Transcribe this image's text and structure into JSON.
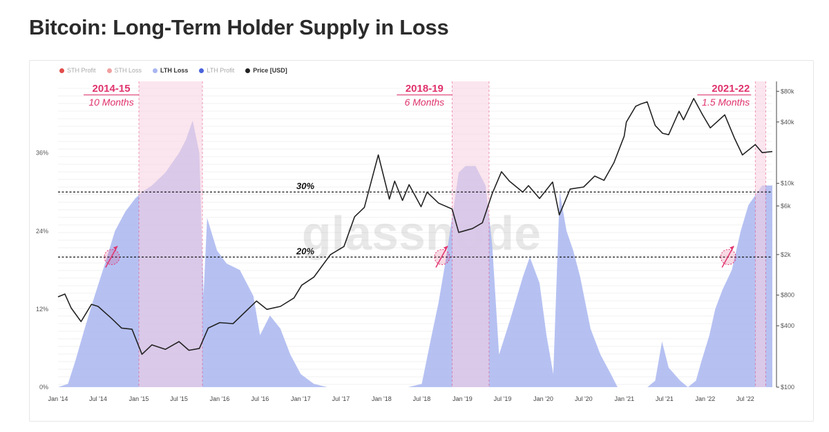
{
  "title": "Bitcoin: Long-Term Holder Supply in Loss",
  "legend": [
    {
      "label": "STH Profit",
      "color": "#e24b4b",
      "active": false
    },
    {
      "label": "STH Loss",
      "color": "#f0a0a0",
      "active": false
    },
    {
      "label": "LTH Loss",
      "color": "#a9b6f0",
      "active": true
    },
    {
      "label": "LTH Profit",
      "color": "#4a63dc",
      "active": false
    },
    {
      "label": "Price [USD]",
      "color": "#222222",
      "active": true
    }
  ],
  "watermark": "glassnode",
  "colors": {
    "lth_loss_fill": "#a9b6f0",
    "bear_band": "#f8cfe0",
    "price_line": "#222222",
    "annotation": "#e0336e"
  },
  "chart_data": {
    "type": "area",
    "x_range": [
      "2014-01-01",
      "2022-10-31"
    ],
    "x_ticks": [
      "Jan '14",
      "Jul '14",
      "Jan '15",
      "Jul '15",
      "Jan '16",
      "Jul '16",
      "Jan '17",
      "Jul '17",
      "Jan '18",
      "Jul '18",
      "Jan '19",
      "Jul '19",
      "Jan '20",
      "Jul '20",
      "Jan '21",
      "Jul '21",
      "Jan '22",
      "Jul '22"
    ],
    "y_left": {
      "ticks": [
        "0%",
        "12%",
        "24%",
        "36%"
      ],
      "values": [
        0,
        12,
        24,
        36
      ],
      "ylim": [
        0,
        47
      ]
    },
    "y_right": {
      "scale": "log",
      "ticks": [
        "$100",
        "$400",
        "$800",
        "$2k",
        "$6k",
        "$10k",
        "$40k",
        "$80k"
      ],
      "values": [
        100,
        400,
        800,
        2000,
        6000,
        10000,
        40000,
        80000
      ],
      "ylim": [
        100,
        100000
      ]
    },
    "reference_lines": [
      {
        "value": 30,
        "label": "30%"
      },
      {
        "value": 20,
        "label": "20%"
      }
    ],
    "bear_periods": [
      {
        "start": "2015-01-01",
        "end": "2015-10-15",
        "title": "2014-15",
        "subtitle": "10 Months"
      },
      {
        "start": "2018-11-15",
        "end": "2019-05-01",
        "title": "2018-19",
        "subtitle": "6 Months"
      },
      {
        "start": "2022-08-15",
        "end": "2022-10-01",
        "title": "2021-22",
        "subtitle": "1.5 Months"
      }
    ],
    "series": [
      {
        "name": "LTH Loss",
        "unit": "%",
        "points": [
          [
            "2014-01-01",
            0
          ],
          [
            "2014-02-15",
            0.5
          ],
          [
            "2014-03-20",
            4
          ],
          [
            "2014-05-01",
            9
          ],
          [
            "2014-06-15",
            14
          ],
          [
            "2014-08-01",
            19
          ],
          [
            "2014-09-15",
            24
          ],
          [
            "2014-11-01",
            27
          ],
          [
            "2014-12-15",
            29
          ],
          [
            "2015-01-15",
            30
          ],
          [
            "2015-03-01",
            31
          ],
          [
            "2015-05-01",
            33
          ],
          [
            "2015-07-01",
            36
          ],
          [
            "2015-08-01",
            38
          ],
          [
            "2015-09-01",
            41
          ],
          [
            "2015-10-01",
            36
          ],
          [
            "2015-10-20",
            14
          ],
          [
            "2015-11-05",
            26
          ],
          [
            "2015-12-20",
            21
          ],
          [
            "2016-02-01",
            19
          ],
          [
            "2016-04-01",
            18
          ],
          [
            "2016-06-01",
            14
          ],
          [
            "2016-07-01",
            8
          ],
          [
            "2016-08-15",
            11
          ],
          [
            "2016-10-01",
            9
          ],
          [
            "2016-11-15",
            5
          ],
          [
            "2017-01-01",
            2
          ],
          [
            "2017-03-01",
            0.5
          ],
          [
            "2017-05-01",
            0
          ],
          [
            "2017-12-15",
            0
          ],
          [
            "2018-02-15",
            0
          ],
          [
            "2018-05-01",
            0
          ],
          [
            "2018-07-01",
            0.5
          ],
          [
            "2018-08-15",
            8
          ],
          [
            "2018-09-15",
            13
          ],
          [
            "2018-10-15",
            19
          ],
          [
            "2018-11-15",
            26
          ],
          [
            "2018-12-15",
            33
          ],
          [
            "2019-01-15",
            34
          ],
          [
            "2019-03-01",
            34
          ],
          [
            "2019-04-15",
            31
          ],
          [
            "2019-05-15",
            22
          ],
          [
            "2019-06-15",
            5
          ],
          [
            "2019-08-01",
            10
          ],
          [
            "2019-10-01",
            17
          ],
          [
            "2019-11-01",
            20
          ],
          [
            "2019-12-15",
            16
          ],
          [
            "2020-01-15",
            8
          ],
          [
            "2020-02-15",
            2
          ],
          [
            "2020-03-15",
            30
          ],
          [
            "2020-04-15",
            24
          ],
          [
            "2020-05-15",
            21
          ],
          [
            "2020-06-15",
            17
          ],
          [
            "2020-08-01",
            9
          ],
          [
            "2020-09-15",
            5
          ],
          [
            "2020-11-01",
            2
          ],
          [
            "2020-12-01",
            0
          ],
          [
            "2021-04-15",
            0
          ],
          [
            "2021-05-20",
            1
          ],
          [
            "2021-06-20",
            7
          ],
          [
            "2021-07-20",
            3
          ],
          [
            "2021-09-10",
            1
          ],
          [
            "2021-10-15",
            0
          ],
          [
            "2021-11-20",
            1
          ],
          [
            "2021-12-15",
            4
          ],
          [
            "2022-01-20",
            8
          ],
          [
            "2022-02-15",
            12
          ],
          [
            "2022-03-20",
            15
          ],
          [
            "2022-05-01",
            18
          ],
          [
            "2022-06-10",
            24
          ],
          [
            "2022-07-15",
            28
          ],
          [
            "2022-09-15",
            31
          ],
          [
            "2022-10-31",
            31
          ]
        ]
      },
      {
        "name": "Price [USD]",
        "unit": "USD",
        "points": [
          [
            "2014-01-01",
            770
          ],
          [
            "2014-02-01",
            820
          ],
          [
            "2014-03-01",
            600
          ],
          [
            "2014-04-15",
            440
          ],
          [
            "2014-06-01",
            650
          ],
          [
            "2014-07-01",
            620
          ],
          [
            "2014-09-01",
            470
          ],
          [
            "2014-10-15",
            380
          ],
          [
            "2014-12-01",
            370
          ],
          [
            "2015-01-15",
            210
          ],
          [
            "2015-03-01",
            260
          ],
          [
            "2015-05-01",
            235
          ],
          [
            "2015-07-01",
            280
          ],
          [
            "2015-08-15",
            230
          ],
          [
            "2015-10-01",
            240
          ],
          [
            "2015-11-10",
            380
          ],
          [
            "2016-01-01",
            430
          ],
          [
            "2016-03-01",
            420
          ],
          [
            "2016-06-15",
            700
          ],
          [
            "2016-08-01",
            580
          ],
          [
            "2016-10-01",
            620
          ],
          [
            "2016-12-01",
            750
          ],
          [
            "2017-01-05",
            1000
          ],
          [
            "2017-03-01",
            1200
          ],
          [
            "2017-05-15",
            2000
          ],
          [
            "2017-07-15",
            2400
          ],
          [
            "2017-09-01",
            4700
          ],
          [
            "2017-10-15",
            5800
          ],
          [
            "2017-12-17",
            19000
          ],
          [
            "2018-02-05",
            7000
          ],
          [
            "2018-03-01",
            10500
          ],
          [
            "2018-04-05",
            6800
          ],
          [
            "2018-05-05",
            9700
          ],
          [
            "2018-06-28",
            5900
          ],
          [
            "2018-07-25",
            8200
          ],
          [
            "2018-09-15",
            6400
          ],
          [
            "2018-11-15",
            5600
          ],
          [
            "2018-12-15",
            3300
          ],
          [
            "2019-02-15",
            3600
          ],
          [
            "2019-04-01",
            4100
          ],
          [
            "2019-05-15",
            7900
          ],
          [
            "2019-06-26",
            13000
          ],
          [
            "2019-08-01",
            10500
          ],
          [
            "2019-09-30",
            8200
          ],
          [
            "2019-10-26",
            9500
          ],
          [
            "2019-12-15",
            7100
          ],
          [
            "2020-02-12",
            10300
          ],
          [
            "2020-03-13",
            4900
          ],
          [
            "2020-05-01",
            8800
          ],
          [
            "2020-07-01",
            9200
          ],
          [
            "2020-08-20",
            11800
          ],
          [
            "2020-10-01",
            10700
          ],
          [
            "2020-11-15",
            16000
          ],
          [
            "2020-12-31",
            29000
          ],
          [
            "2021-01-10",
            40000
          ],
          [
            "2021-02-21",
            57000
          ],
          [
            "2021-03-15",
            60000
          ],
          [
            "2021-04-14",
            63000
          ],
          [
            "2021-05-20",
            37000
          ],
          [
            "2021-06-22",
            31000
          ],
          [
            "2021-07-20",
            30000
          ],
          [
            "2021-09-05",
            51000
          ],
          [
            "2021-09-25",
            42000
          ],
          [
            "2021-11-10",
            68000
          ],
          [
            "2021-12-20",
            47000
          ],
          [
            "2022-01-24",
            35000
          ],
          [
            "2022-03-30",
            47000
          ],
          [
            "2022-05-12",
            28000
          ],
          [
            "2022-06-18",
            19000
          ],
          [
            "2022-08-15",
            24000
          ],
          [
            "2022-09-15",
            20000
          ],
          [
            "2022-10-31",
            20500
          ]
        ]
      }
    ]
  }
}
